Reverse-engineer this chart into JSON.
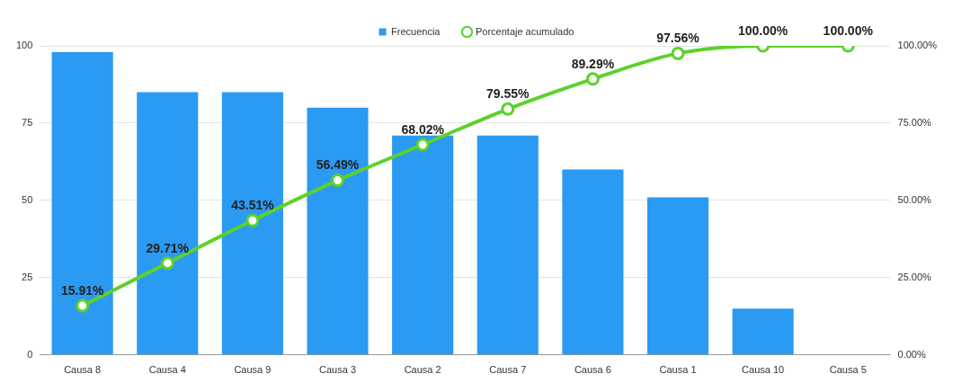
{
  "chart_data": {
    "type": "bar",
    "categories": [
      "Causa 8",
      "Causa 4",
      "Causa 9",
      "Causa 3",
      "Causa 2",
      "Causa 7",
      "Causa 6",
      "Causa 1",
      "Causa 10",
      "Causa 5"
    ],
    "series": [
      {
        "name": "Frecuencia",
        "color": "#2b9af3",
        "values": [
          98,
          85,
          85,
          80,
          71,
          71,
          60,
          51,
          15,
          0
        ]
      },
      {
        "name": "Porcentaje acumulado",
        "type": "line",
        "axis": "y2",
        "color": "#5cd12b",
        "marker": "circle",
        "values": [
          15.91,
          29.71,
          43.51,
          56.49,
          68.02,
          79.55,
          89.29,
          97.56,
          100,
          100
        ],
        "value_labels": [
          "15.91%",
          "29.71%",
          "43.51%",
          "56.49%",
          "68.02%",
          "79.55%",
          "89.29%",
          "97.56%",
          "100.00%",
          "100.00%"
        ]
      }
    ],
    "ylim": [
      0,
      100
    ],
    "yticks": [
      0,
      25,
      50,
      75,
      100
    ],
    "y2lim": [
      0,
      100
    ],
    "y2ticks": [
      {
        "value": 0,
        "label": "0.00%"
      },
      {
        "value": 25,
        "label": "25.00%"
      },
      {
        "value": 50,
        "label": "50.00%"
      },
      {
        "value": 75,
        "label": "75.00%"
      },
      {
        "value": 100,
        "label": "100.00%"
      }
    ],
    "grid": "y",
    "legend": "top"
  }
}
